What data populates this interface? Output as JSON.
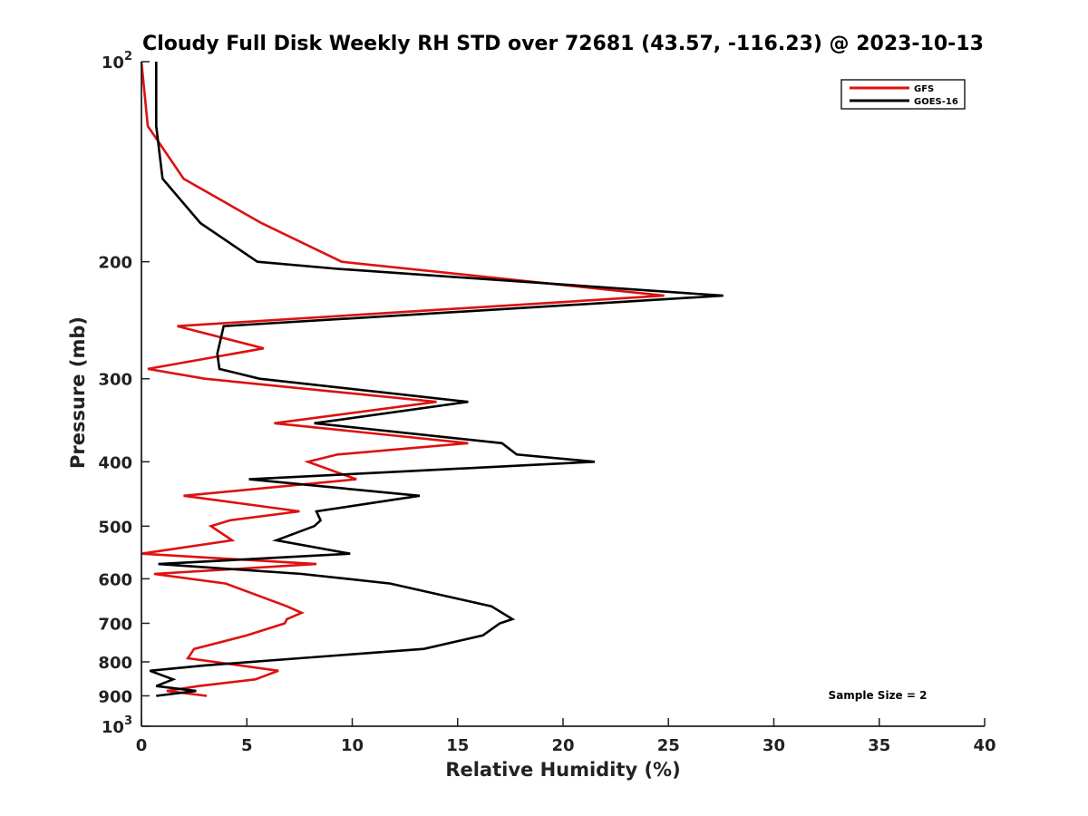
{
  "chart_data": {
    "type": "line",
    "title": "Cloudy Full Disk Weekly RH STD over 72681 (43.57, -116.23) @ 2023-10-13",
    "xlabel": "Relative Humidity (%)",
    "ylabel": "Pressure (mb)",
    "xlim": [
      0,
      40
    ],
    "ylim": [
      1000,
      100
    ],
    "y_scale": "log",
    "y_inverted": true,
    "grid": false,
    "legend_position": "top-right",
    "x_ticks": [
      "0",
      "5",
      "10",
      "15",
      "20",
      "25",
      "30",
      "35",
      "40"
    ],
    "y_ticks": [
      {
        "value": 100,
        "base": "10",
        "exp": "2"
      },
      {
        "value": 200,
        "label": "200"
      },
      {
        "value": 300,
        "label": "300"
      },
      {
        "value": 400,
        "label": "400"
      },
      {
        "value": 500,
        "label": "500"
      },
      {
        "value": 600,
        "label": "600"
      },
      {
        "value": 700,
        "label": "700"
      },
      {
        "value": 800,
        "label": "800"
      },
      {
        "value": 900,
        "label": "900"
      },
      {
        "value": 1000,
        "base": "10",
        "exp": "3"
      }
    ],
    "annotation": "Sample Size = 2",
    "series": [
      {
        "name": "GFS",
        "color": "#dd1111",
        "points": [
          [
            0.0,
            100
          ],
          [
            0.3,
            125
          ],
          [
            2.0,
            150
          ],
          [
            5.7,
            175
          ],
          [
            9.5,
            200
          ],
          [
            24.8,
            225
          ],
          [
            1.7,
            250
          ],
          [
            5.8,
            270
          ],
          [
            0.3,
            290
          ],
          [
            3.0,
            300
          ],
          [
            14.0,
            325
          ],
          [
            6.3,
            350
          ],
          [
            15.5,
            375
          ],
          [
            9.3,
            390
          ],
          [
            7.9,
            400
          ],
          [
            10.2,
            425
          ],
          [
            2.0,
            450
          ],
          [
            7.5,
            475
          ],
          [
            4.2,
            490
          ],
          [
            3.3,
            500
          ],
          [
            4.3,
            525
          ],
          [
            0.0,
            550
          ],
          [
            8.3,
            570
          ],
          [
            0.6,
            590
          ],
          [
            4.0,
            610
          ],
          [
            6.9,
            660
          ],
          [
            7.6,
            675
          ],
          [
            6.9,
            690
          ],
          [
            6.8,
            700
          ],
          [
            5.0,
            730
          ],
          [
            2.5,
            765
          ],
          [
            2.2,
            790
          ],
          [
            6.5,
            825
          ],
          [
            5.4,
            850
          ],
          [
            2.7,
            870
          ],
          [
            1.2,
            885
          ],
          [
            3.1,
            900
          ]
        ]
      },
      {
        "name": "GOES-16",
        "color": "#000000",
        "points": [
          [
            0.7,
            100
          ],
          [
            0.7,
            125
          ],
          [
            1.0,
            150
          ],
          [
            2.8,
            175
          ],
          [
            5.5,
            200
          ],
          [
            9.3,
            205
          ],
          [
            27.6,
            225
          ],
          [
            3.9,
            250
          ],
          [
            3.6,
            275
          ],
          [
            3.7,
            290
          ],
          [
            5.6,
            300
          ],
          [
            15.5,
            325
          ],
          [
            8.2,
            350
          ],
          [
            17.1,
            375
          ],
          [
            17.8,
            390
          ],
          [
            21.5,
            400
          ],
          [
            5.1,
            425
          ],
          [
            13.2,
            450
          ],
          [
            8.3,
            475
          ],
          [
            8.5,
            490
          ],
          [
            8.2,
            500
          ],
          [
            6.4,
            525
          ],
          [
            9.9,
            550
          ],
          [
            0.8,
            570
          ],
          [
            7.6,
            590
          ],
          [
            11.8,
            610
          ],
          [
            16.6,
            660
          ],
          [
            17.6,
            690
          ],
          [
            17.0,
            700
          ],
          [
            16.2,
            730
          ],
          [
            13.4,
            765
          ],
          [
            7.5,
            790
          ],
          [
            3.0,
            810
          ],
          [
            0.4,
            825
          ],
          [
            1.5,
            850
          ],
          [
            0.7,
            870
          ],
          [
            2.6,
            885
          ],
          [
            0.7,
            900
          ]
        ]
      }
    ]
  }
}
